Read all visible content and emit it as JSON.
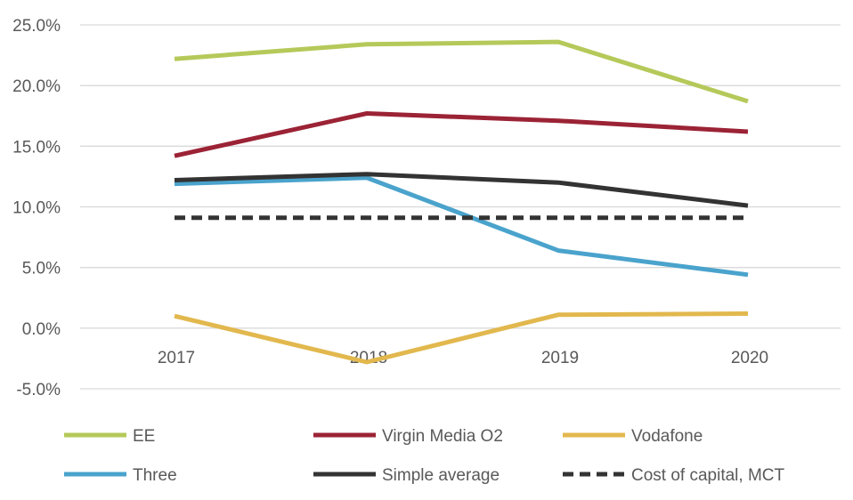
{
  "chart_data": {
    "type": "line",
    "title": "",
    "xlabel": "",
    "ylabel": "",
    "categories": [
      "2017",
      "2018",
      "2019",
      "2020"
    ],
    "y_ticks": [
      "25.0%",
      "20.0%",
      "15.0%",
      "10.0%",
      "5.0%",
      "0.0%",
      "-5.0%"
    ],
    "ylim": [
      -5,
      25
    ],
    "grid": true,
    "legend_position": "bottom",
    "series": [
      {
        "name": "EE",
        "color": "#b5c95a",
        "dashed": false,
        "values": [
          22.2,
          23.4,
          23.6,
          18.7
        ]
      },
      {
        "name": "Virgin Media O2",
        "color": "#9b2335",
        "dashed": false,
        "values": [
          14.2,
          17.7,
          17.1,
          16.2
        ]
      },
      {
        "name": "Vodafone",
        "color": "#e2b84e",
        "dashed": false,
        "values": [
          1.0,
          -2.8,
          1.1,
          1.2
        ]
      },
      {
        "name": "Three",
        "color": "#4aa3cc",
        "dashed": false,
        "values": [
          11.9,
          12.4,
          6.4,
          4.4
        ]
      },
      {
        "name": "Simple average",
        "color": "#333333",
        "dashed": false,
        "values": [
          12.2,
          12.7,
          12.0,
          10.1
        ]
      },
      {
        "name": "Cost of capital, MCT",
        "color": "#333333",
        "dashed": true,
        "values": [
          9.1,
          9.1,
          9.1,
          9.1
        ]
      }
    ]
  }
}
